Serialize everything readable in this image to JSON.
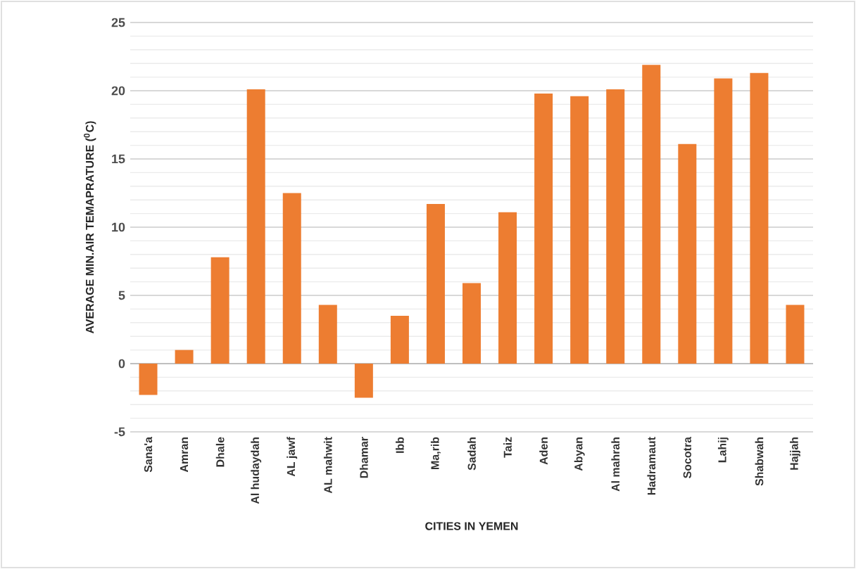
{
  "chart_data": {
    "type": "bar",
    "xlabel": "CITIES IN YEMEN",
    "ylabel": "AVERAGE MIN.AIR TEMAPRATURE ($^{0}$C)",
    "categories": [
      "Sana'a",
      "Amran",
      "Dhale",
      "Al hudaydah",
      "AL jawf",
      "AL mahwit",
      "Dhamar",
      "Ibb",
      "Ma,rib",
      "Sadah",
      "Taiz",
      "Aden",
      "Abyan",
      "Al mahrah",
      "Hadramaut",
      "Socotra",
      "Lahij",
      "Shabwah",
      "Hajjah"
    ],
    "values": [
      -2.3,
      1.0,
      7.8,
      20.1,
      12.5,
      4.3,
      -2.5,
      3.5,
      11.7,
      5.9,
      11.1,
      19.8,
      19.6,
      20.1,
      21.9,
      16.1,
      20.9,
      21.3,
      4.3
    ],
    "color": "#ed7d31",
    "ylim": [
      -5,
      25
    ],
    "yticks": [
      -5,
      0,
      5,
      10,
      15,
      20,
      25
    ],
    "grid": "y"
  }
}
